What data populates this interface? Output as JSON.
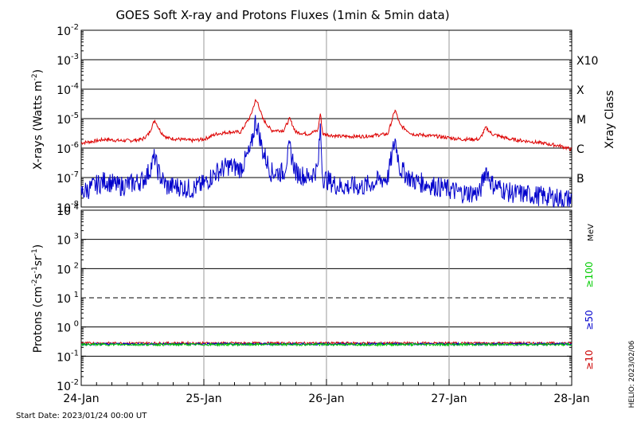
{
  "title": "GOES Soft X-ray and Protons Fluxes   (1min & 5min data)",
  "footer": {
    "start_date": "Start Date: 2023/01/24 00:00 UT",
    "side_stamp": "HELIO: 2023/02/06"
  },
  "colors": {
    "xray_long": "#dd0000",
    "xray_short": "#0000cc",
    "proton_10": "#cc0000",
    "proton_50": "#0000cc",
    "proton_100": "#00cc00",
    "grid": "#000000",
    "day_lines": "#999999",
    "background": "#ffffff"
  },
  "chart_data": [
    {
      "type": "line",
      "name": "xray",
      "scale": "log",
      "ylabel_main": "X-rays (Watts m",
      "ylabel_sup": "-2",
      "ylabel_close": ")",
      "ylim_exp": [
        -8,
        -2
      ],
      "ytick_exponents": [
        -8,
        -7,
        -6,
        -5,
        -4,
        -3,
        -2
      ],
      "ytick_base": "10",
      "grid_exponents": [
        -7,
        -6,
        -5,
        -4,
        -3
      ],
      "class_axis_label": "Xray Class",
      "classes": [
        {
          "label": "B",
          "exp": -7
        },
        {
          "label": "C",
          "exp": -6
        },
        {
          "label": "M",
          "exp": -5
        },
        {
          "label": "X",
          "exp": -4
        },
        {
          "label": "X10",
          "exp": -3
        }
      ],
      "series": [
        {
          "key": "long",
          "x": [
            0,
            0.1,
            0.2,
            0.3,
            0.4,
            0.5,
            0.55,
            0.6,
            0.62,
            0.65,
            0.7,
            0.8,
            0.9,
            1.0,
            1.1,
            1.2,
            1.3,
            1.38,
            1.42,
            1.44,
            1.48,
            1.55,
            1.65,
            1.7,
            1.75,
            1.85,
            1.93,
            1.95,
            1.97,
            2.1,
            2.3,
            2.5,
            2.56,
            2.6,
            2.7,
            2.9,
            3.1,
            3.25,
            3.3,
            3.35,
            3.5,
            3.7,
            3.9,
            4.0
          ],
          "y": [
            1.5e-06,
            1.7e-06,
            2e-06,
            1.8e-06,
            1.8e-06,
            2e-06,
            3e-06,
            9e-06,
            6e-06,
            3.5e-06,
            2.2e-06,
            2e-06,
            1.8e-06,
            2e-06,
            3e-06,
            3.5e-06,
            3.5e-06,
            1.2e-05,
            4e-05,
            3.5e-05,
            1e-05,
            4e-06,
            4e-06,
            1e-05,
            3.5e-06,
            3e-06,
            4e-06,
            1.5e-05,
            3e-06,
            2.5e-06,
            2.5e-06,
            3e-06,
            2e-05,
            6e-06,
            3e-06,
            2.5e-06,
            2e-06,
            2e-06,
            5e-06,
            3e-06,
            2e-06,
            1.6e-06,
            1.2e-06,
            9e-07
          ]
        },
        {
          "key": "short",
          "x": [
            0,
            0.1,
            0.2,
            0.3,
            0.4,
            0.5,
            0.55,
            0.6,
            0.62,
            0.65,
            0.7,
            0.8,
            0.9,
            1.0,
            1.1,
            1.2,
            1.3,
            1.38,
            1.42,
            1.44,
            1.48,
            1.55,
            1.65,
            1.7,
            1.75,
            1.85,
            1.93,
            1.95,
            1.97,
            2.1,
            2.3,
            2.5,
            2.56,
            2.6,
            2.7,
            2.9,
            3.1,
            3.25,
            3.3,
            3.35,
            3.5,
            3.7,
            3.9,
            4.0
          ],
          "y": [
            3e-08,
            5e-08,
            8e-08,
            5e-08,
            6e-08,
            8e-08,
            1.5e-07,
            5e-07,
            2e-07,
            1e-07,
            5e-08,
            5e-08,
            4e-08,
            6e-08,
            1.5e-07,
            2.5e-07,
            2e-07,
            8e-07,
            8e-06,
            5e-06,
            8e-07,
            1.5e-07,
            1.5e-07,
            1e-06,
            1.5e-07,
            1e-07,
            2e-07,
            5e-06,
            1e-07,
            5e-08,
            5e-08,
            1e-07,
            2e-06,
            2e-07,
            8e-08,
            5e-08,
            3e-08,
            3e-08,
            2e-07,
            6e-08,
            3e-08,
            2.5e-08,
            2e-08,
            1.8e-08
          ]
        }
      ]
    },
    {
      "type": "line",
      "name": "protons",
      "scale": "log",
      "ylabel_main": "Protons (cm",
      "ylabel_sup1": "-2",
      "ylabel_mid1": "s",
      "ylabel_sup2": "-1",
      "ylabel_mid2": "sr",
      "ylabel_sup3": "-1",
      "ylabel_close": ")",
      "ylim_exp": [
        -2,
        4
      ],
      "ytick_exponents": [
        -2,
        -1,
        0,
        1,
        2,
        3,
        4
      ],
      "ytick_base": "10",
      "grid_exponents": [
        -1,
        0,
        2,
        3
      ],
      "dashed_exponent": 1,
      "energy_unit": "MeV",
      "energy_labels": [
        {
          "label": "≥100",
          "key": "proton_100"
        },
        {
          "label": "≥50",
          "key": "proton_50"
        },
        {
          "label": "≥10",
          "key": "proton_10"
        }
      ],
      "series": [
        {
          "key": "p10",
          "x": [
            0,
            4
          ],
          "y": [
            0.28,
            0.28
          ]
        },
        {
          "key": "p50",
          "x": [
            0,
            4
          ],
          "y": [
            0.26,
            0.26
          ]
        },
        {
          "key": "p100",
          "x": [
            0,
            4
          ],
          "y": [
            0.25,
            0.25
          ]
        }
      ]
    }
  ],
  "x_axis": {
    "xlim": [
      0,
      4
    ],
    "tick_labels": [
      "24-Jan",
      "25-Jan",
      "26-Jan",
      "27-Jan",
      "28-Jan"
    ]
  }
}
